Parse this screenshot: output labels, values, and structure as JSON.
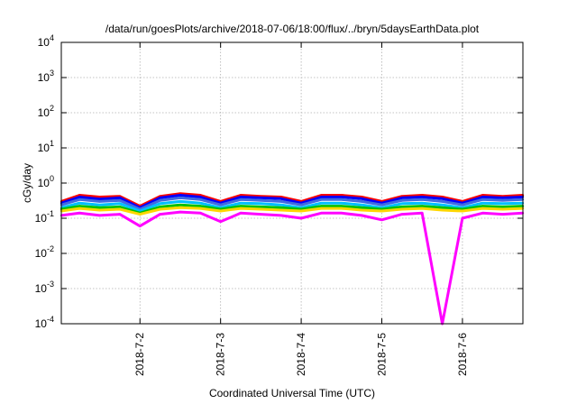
{
  "chart_data": {
    "type": "line",
    "title": "/data/run/goesPlots/archive/2018-07-06/18:00/flux/../bryn/5daysEarthData.plot",
    "xlabel": "Coordinated Universal Time (UTC)",
    "ylabel": "cGy/day",
    "yscale": "log",
    "ylim": [
      0.0001,
      10000
    ],
    "xlim": [
      "2018-07-01T00:35",
      "2018-07-06T18:00"
    ],
    "grid": true,
    "legend": "none",
    "y_ticks": [
      {
        "value": 0.0001,
        "mantissa": "10",
        "exp": "-4"
      },
      {
        "value": 0.001,
        "mantissa": "10",
        "exp": "-3"
      },
      {
        "value": 0.01,
        "mantissa": "10",
        "exp": "-2"
      },
      {
        "value": 0.1,
        "mantissa": "10",
        "exp": "-1"
      },
      {
        "value": 1,
        "mantissa": "10",
        "exp": "0"
      },
      {
        "value": 10,
        "mantissa": "10",
        "exp": "1"
      },
      {
        "value": 100,
        "mantissa": "10",
        "exp": "2"
      },
      {
        "value": 1000,
        "mantissa": "10",
        "exp": "3"
      },
      {
        "value": 10000,
        "mantissa": "10",
        "exp": "4"
      }
    ],
    "x_ticks": [
      {
        "value": "2018-07-02T00:00",
        "label": "2018-7-2"
      },
      {
        "value": "2018-07-03T00:00",
        "label": "2018-7-3"
      },
      {
        "value": "2018-07-04T00:00",
        "label": "2018-7-4"
      },
      {
        "value": "2018-07-05T00:00",
        "label": "2018-7-5"
      },
      {
        "value": "2018-07-06T00:00",
        "label": "2018-7-6"
      }
    ],
    "x": [
      "2018-07-01T00:35",
      "2018-07-01T06:00",
      "2018-07-01T12:00",
      "2018-07-01T18:00",
      "2018-07-02T00:00",
      "2018-07-02T06:00",
      "2018-07-02T12:00",
      "2018-07-02T18:00",
      "2018-07-03T00:00",
      "2018-07-03T06:00",
      "2018-07-03T12:00",
      "2018-07-03T18:00",
      "2018-07-04T00:00",
      "2018-07-04T06:00",
      "2018-07-04T12:00",
      "2018-07-04T18:00",
      "2018-07-05T00:00",
      "2018-07-05T06:00",
      "2018-07-05T12:00",
      "2018-07-05T18:00",
      "2018-07-06T00:00",
      "2018-07-06T06:00",
      "2018-07-06T12:00",
      "2018-07-06T18:00"
    ],
    "series": [
      {
        "color": "#ff0000",
        "values": [
          0.3,
          0.45,
          0.4,
          0.42,
          0.22,
          0.42,
          0.5,
          0.45,
          0.3,
          0.45,
          0.42,
          0.4,
          0.3,
          0.45,
          0.45,
          0.4,
          0.3,
          0.42,
          0.45,
          0.4,
          0.3,
          0.45,
          0.42,
          0.45
        ]
      },
      {
        "color": "#0000ff",
        "values": [
          0.27,
          0.4,
          0.35,
          0.38,
          0.2,
          0.38,
          0.45,
          0.4,
          0.27,
          0.4,
          0.38,
          0.36,
          0.27,
          0.4,
          0.4,
          0.36,
          0.27,
          0.38,
          0.4,
          0.36,
          0.27,
          0.4,
          0.38,
          0.4
        ]
      },
      {
        "color": "#4169e1",
        "values": [
          0.24,
          0.34,
          0.3,
          0.32,
          0.18,
          0.32,
          0.38,
          0.34,
          0.24,
          0.34,
          0.32,
          0.3,
          0.24,
          0.34,
          0.34,
          0.3,
          0.24,
          0.32,
          0.34,
          0.3,
          0.24,
          0.34,
          0.32,
          0.34
        ]
      },
      {
        "color": "#00bfff",
        "values": [
          0.2,
          0.27,
          0.24,
          0.26,
          0.16,
          0.26,
          0.3,
          0.27,
          0.2,
          0.27,
          0.26,
          0.24,
          0.2,
          0.27,
          0.27,
          0.24,
          0.2,
          0.26,
          0.27,
          0.24,
          0.2,
          0.27,
          0.26,
          0.27
        ]
      },
      {
        "color": "#00c000",
        "values": [
          0.18,
          0.22,
          0.2,
          0.21,
          0.14,
          0.21,
          0.24,
          0.22,
          0.18,
          0.22,
          0.21,
          0.2,
          0.18,
          0.22,
          0.22,
          0.2,
          0.18,
          0.21,
          0.22,
          0.2,
          0.18,
          0.22,
          0.21,
          0.22
        ]
      },
      {
        "color": "#ffd700",
        "values": [
          0.16,
          0.19,
          0.17,
          0.18,
          0.13,
          0.18,
          0.2,
          0.19,
          0.16,
          0.19,
          0.18,
          0.17,
          0.16,
          0.19,
          0.19,
          0.17,
          0.16,
          0.18,
          0.19,
          0.17,
          0.16,
          0.19,
          0.18,
          0.19
        ]
      },
      {
        "color": "#ff00ff",
        "values": [
          0.12,
          0.14,
          0.12,
          0.13,
          0.06,
          0.13,
          0.15,
          0.14,
          0.08,
          0.14,
          0.13,
          0.12,
          0.1,
          0.14,
          0.14,
          0.12,
          0.09,
          0.13,
          0.14,
          0.0001,
          0.1,
          0.14,
          0.13,
          0.14
        ]
      }
    ]
  }
}
